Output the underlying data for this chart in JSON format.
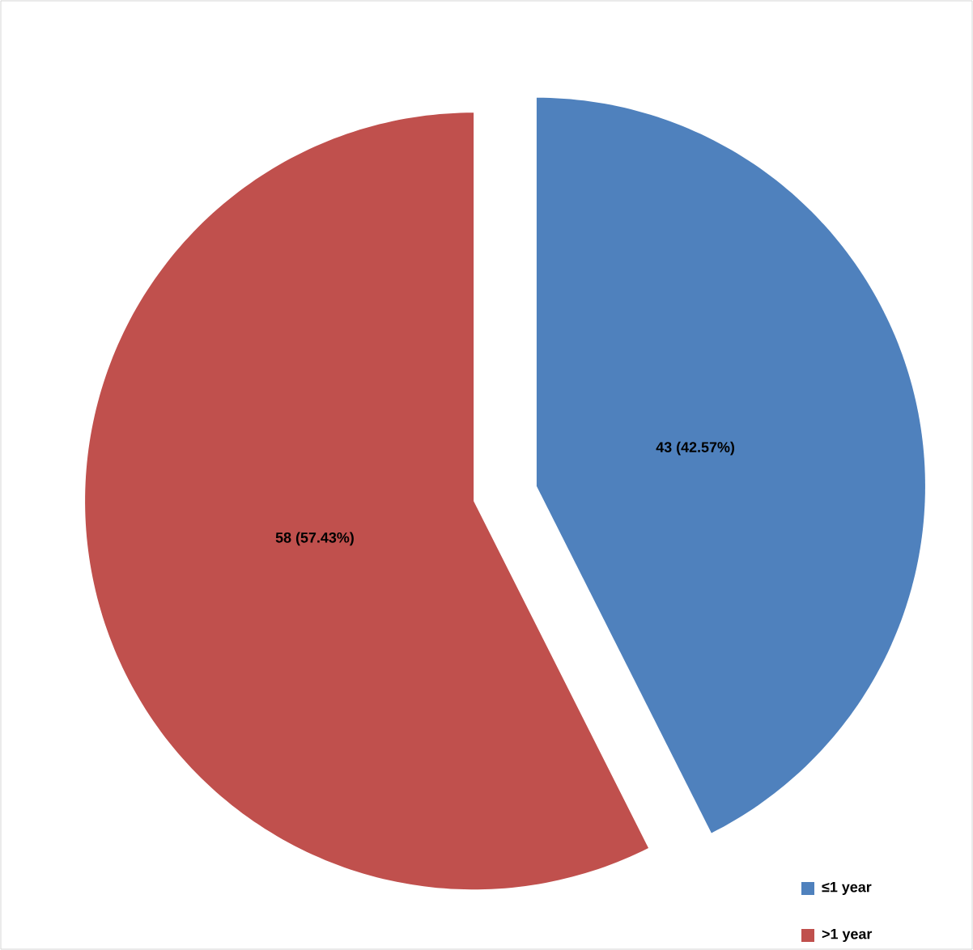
{
  "chart_data": {
    "type": "pie",
    "categories": [
      "≤1 year",
      ">1 year"
    ],
    "values": [
      43,
      58
    ],
    "colors": [
      "#4f81bd",
      "#c0504d"
    ],
    "value_labels": [
      "43 (42.57%)",
      "58 (57.43%)"
    ],
    "legend": "bottom right"
  }
}
